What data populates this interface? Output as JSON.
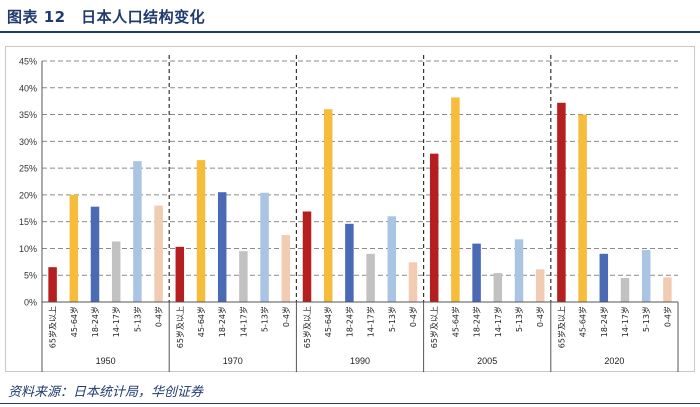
{
  "header": {
    "title": "图表 12　日本人口结构变化"
  },
  "footer": {
    "source": "资料来源：日本统计局，华创证券"
  },
  "chart_data": {
    "type": "bar",
    "title": "",
    "xlabel": "",
    "ylabel": "",
    "ylim": [
      0,
      45
    ],
    "yticks": [
      "0%",
      "5%",
      "10%",
      "15%",
      "20%",
      "25%",
      "30%",
      "35%",
      "40%",
      "45%"
    ],
    "grid": true,
    "legend": "none",
    "categories": [
      "65岁及以上",
      "45-64岁",
      "18-24岁",
      "14-17岁",
      "5-13岁",
      "0-4岁"
    ],
    "category_colors": [
      "#b51f1f",
      "#f5bd3b",
      "#4a6ab5",
      "#c2c2c2",
      "#a9c5e3",
      "#f2ccb2"
    ],
    "groups": [
      {
        "name": "1950",
        "values": [
          6.5,
          20,
          17.8,
          11.3,
          26.3,
          18
        ]
      },
      {
        "name": "1970",
        "values": [
          10.3,
          26.5,
          20.5,
          9.5,
          20.4,
          12.5
        ]
      },
      {
        "name": "1990",
        "values": [
          16.9,
          36,
          14.6,
          9,
          16,
          7.4
        ]
      },
      {
        "name": "2005",
        "values": [
          27.7,
          38.2,
          10.9,
          5.4,
          11.7,
          6.1
        ]
      },
      {
        "name": "2020",
        "values": [
          37.2,
          35,
          9,
          4.5,
          9.7,
          4.6
        ]
      }
    ]
  }
}
